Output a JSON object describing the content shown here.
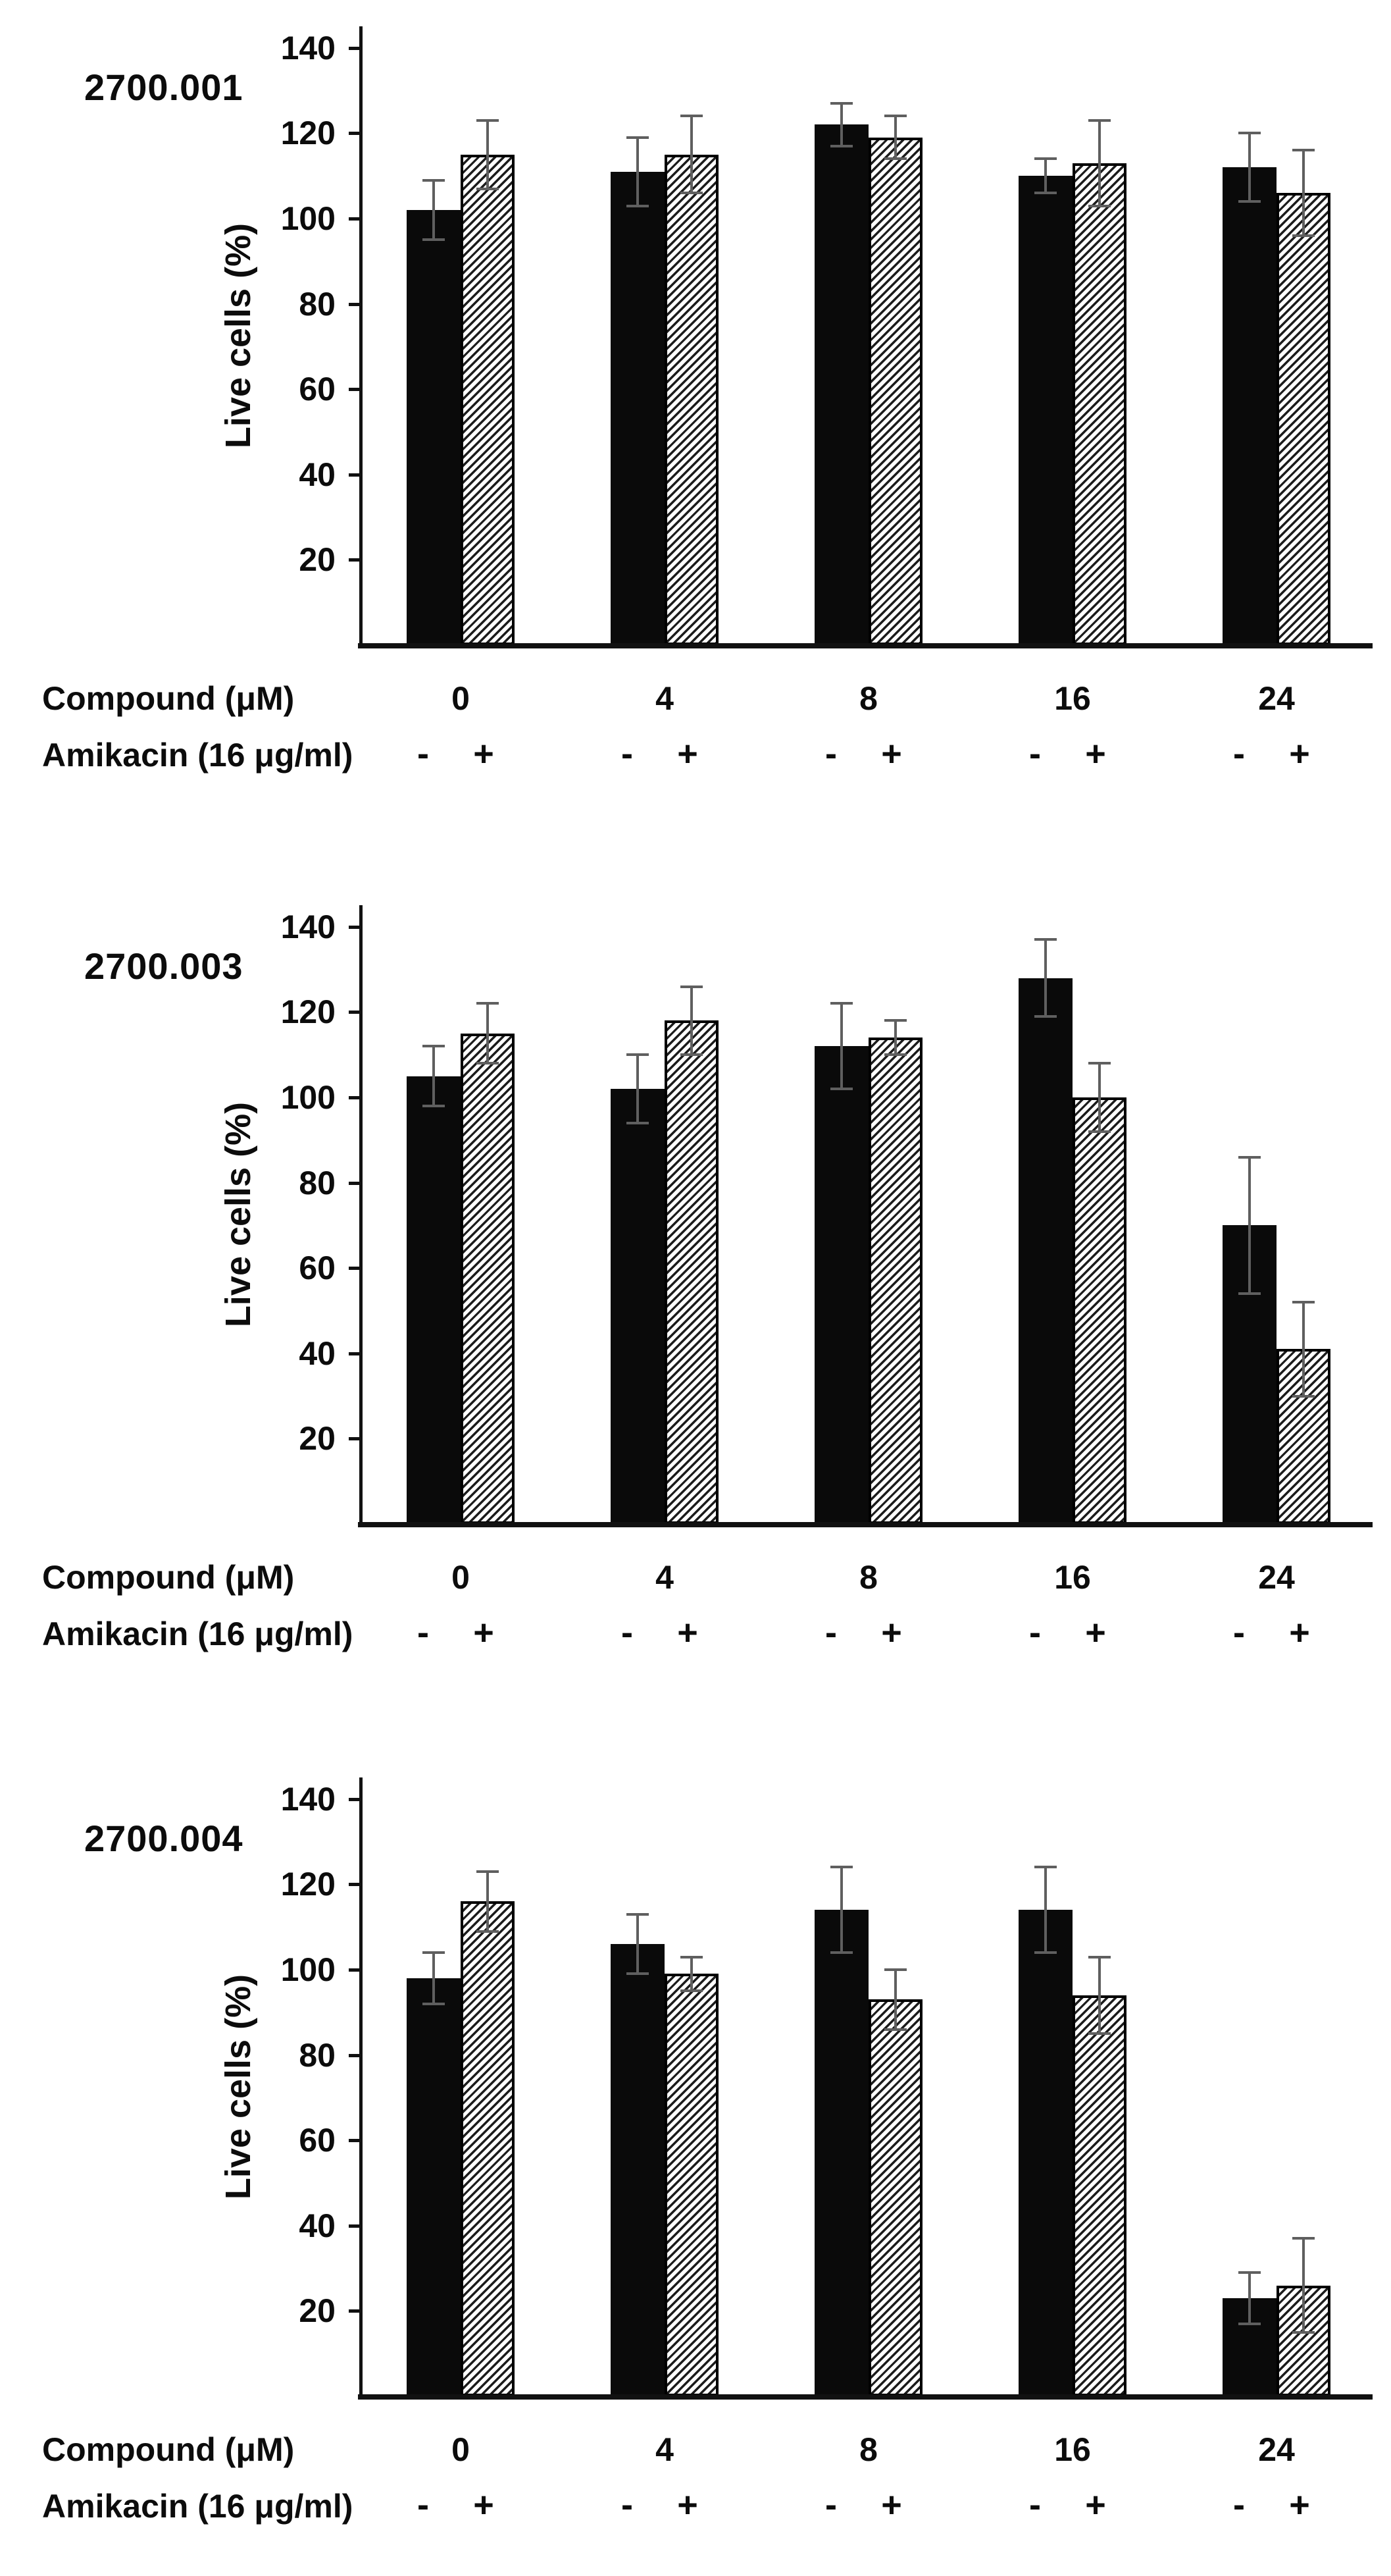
{
  "figure": {
    "background": "#ffffff",
    "y_axis_label": "Live cells (%)",
    "y_ticks": [
      20,
      40,
      60,
      80,
      100,
      120,
      140
    ],
    "x_axis": {
      "row1_label": "Compound (μM)",
      "row2_label": "Amikacin (16 μg/ml)",
      "minus_symbol": "-",
      "plus_symbol": "+"
    },
    "colors": {
      "solid_bar": "#0a0a0a",
      "hatch_stroke": "#1c1c1c",
      "hatch_background": "#ffffff",
      "error_bar": "#5f5f5f",
      "axis": "#111111"
    }
  },
  "chart_data": [
    {
      "type": "bar",
      "title": "2700.001",
      "ylabel": "Live cells (%)",
      "ylim": [
        0,
        145
      ],
      "grid": false,
      "legend": "none",
      "xlabel_rows": [
        "Compound (μM)",
        "Amikacin (16 μg/ml)"
      ],
      "categories": [
        "0",
        "4",
        "8",
        "16",
        "24"
      ],
      "series": [
        {
          "name": "Amikacin −",
          "symbol": "-",
          "style": "solid-black",
          "values": [
            102,
            111,
            122,
            110,
            112
          ],
          "errors": [
            7,
            8,
            5,
            4,
            8
          ]
        },
        {
          "name": "Amikacin +",
          "symbol": "+",
          "style": "hatched",
          "values": [
            115,
            115,
            119,
            113,
            106
          ],
          "errors": [
            8,
            9,
            5,
            10,
            10
          ]
        }
      ]
    },
    {
      "type": "bar",
      "title": "2700.003",
      "ylabel": "Live cells (%)",
      "ylim": [
        0,
        145
      ],
      "grid": false,
      "legend": "none",
      "xlabel_rows": [
        "Compound (μM)",
        "Amikacin (16 μg/ml)"
      ],
      "categories": [
        "0",
        "4",
        "8",
        "16",
        "24"
      ],
      "series": [
        {
          "name": "Amikacin −",
          "symbol": "-",
          "style": "solid-black",
          "values": [
            105,
            102,
            112,
            128,
            70
          ],
          "errors": [
            7,
            8,
            10,
            9,
            16
          ]
        },
        {
          "name": "Amikacin +",
          "symbol": "+",
          "style": "hatched",
          "values": [
            115,
            118,
            114,
            100,
            41
          ],
          "errors": [
            7,
            8,
            4,
            8,
            11
          ]
        }
      ]
    },
    {
      "type": "bar",
      "title": "2700.004",
      "ylabel": "Live cells (%)",
      "ylim": [
        0,
        145
      ],
      "grid": false,
      "legend": "none",
      "xlabel_rows": [
        "Compound (μM)",
        "Amikacin (16 μg/ml)"
      ],
      "categories": [
        "0",
        "4",
        "8",
        "16",
        "24"
      ],
      "series": [
        {
          "name": "Amikacin −",
          "symbol": "-",
          "style": "solid-black",
          "values": [
            98,
            106,
            114,
            114,
            23
          ],
          "errors": [
            6,
            7,
            10,
            10,
            6
          ]
        },
        {
          "name": "Amikacin +",
          "symbol": "+",
          "style": "hatched",
          "values": [
            116,
            99,
            93,
            94,
            26
          ],
          "errors": [
            7,
            4,
            7,
            9,
            11
          ]
        }
      ]
    }
  ]
}
